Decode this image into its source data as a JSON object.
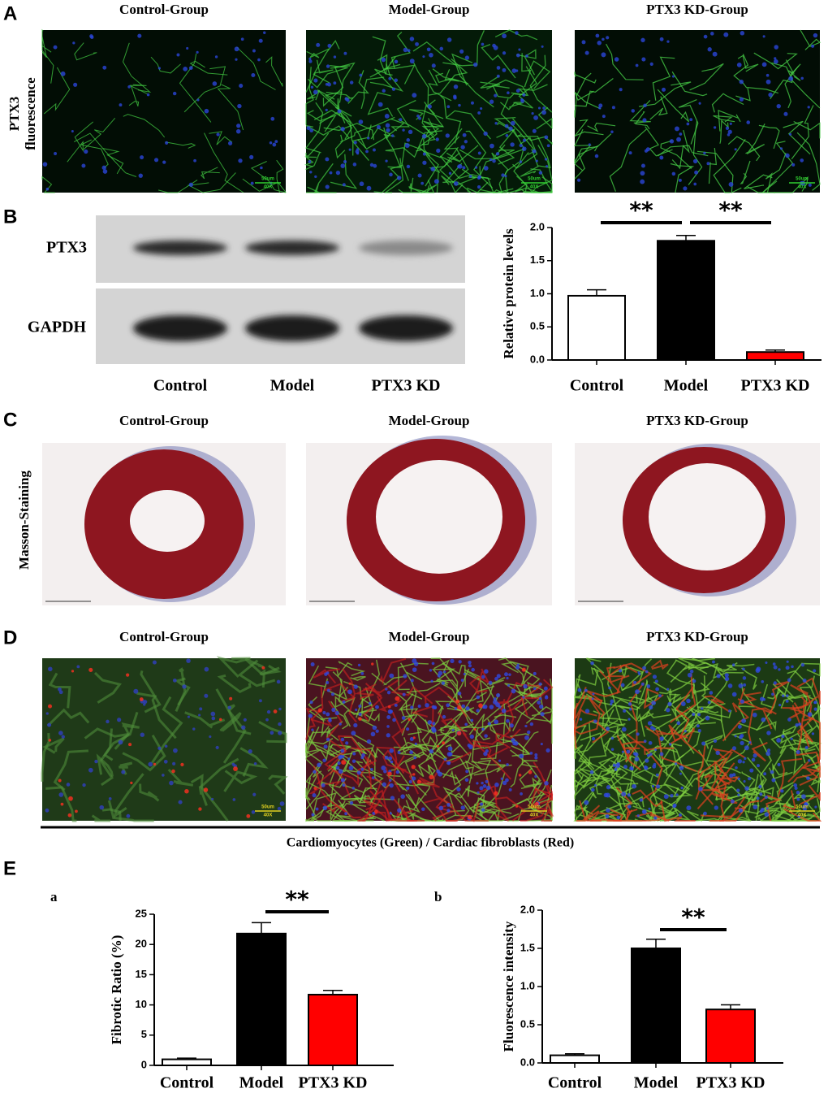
{
  "panels": {
    "A": {
      "label": "A",
      "row_label": [
        "PTX3",
        "fluorescence"
      ],
      "titles": [
        "Control-Group",
        "Model-Group",
        "PTX3 KD-Group"
      ],
      "scale_text": "50um",
      "magnification": "40X"
    },
    "B": {
      "label": "B",
      "blot_rows": [
        "PTX3",
        "GAPDH"
      ],
      "lanes": [
        "Control",
        "Model",
        "PTX3 KD"
      ]
    },
    "C": {
      "label": "C",
      "row_label": "Masson-Staining",
      "titles": [
        "Control-Group",
        "Model-Group",
        "PTX3 KD-Group"
      ]
    },
    "D": {
      "label": "D",
      "titles": [
        "Control-Group",
        "Model-Group",
        "PTX3 KD-Group"
      ],
      "scale_text": "50um",
      "magnification": "40X",
      "caption": "Cardiomyocytes (Green) / Cardiac fibroblasts (Red)"
    },
    "E": {
      "label": "E",
      "sublabels": [
        "a",
        "b"
      ]
    }
  },
  "chart_data": [
    {
      "type": "bar",
      "ylabel": "Relative protein levels",
      "categories": [
        "Control",
        "Model",
        "PTX3 KD"
      ],
      "values": [
        0.97,
        1.8,
        0.12
      ],
      "errors": [
        0.09,
        0.08,
        0.03
      ],
      "colors": [
        "#ffffff",
        "#000000",
        "#ff0000"
      ],
      "ylim": [
        0,
        2
      ],
      "yticks": [
        {
          "value": 0,
          "label": "0.0"
        },
        {
          "value": 0.5,
          "label": "0.5"
        },
        {
          "value": 1,
          "label": "1.0"
        },
        {
          "value": 1.5,
          "label": "1.5"
        },
        {
          "value": 2,
          "label": "2.0"
        }
      ],
      "annotations": [
        "**",
        "**"
      ]
    },
    {
      "type": "bar",
      "ylabel": "Fibrotic Ratio (%)",
      "categories": [
        "Control",
        "Model",
        "PTX3 KD"
      ],
      "values": [
        1.0,
        21.8,
        11.7
      ],
      "errors": [
        0.2,
        1.8,
        0.7
      ],
      "colors": [
        "#ffffff",
        "#000000",
        "#ff0000"
      ],
      "ylim": [
        0,
        25
      ],
      "yticks": [
        0,
        5,
        10,
        15,
        20,
        25
      ],
      "annotations": [
        "**"
      ]
    },
    {
      "type": "bar",
      "ylabel": "Fluorescence intensity",
      "categories": [
        "Control",
        "Model",
        "PTX3 KD"
      ],
      "values": [
        0.1,
        1.5,
        0.7
      ],
      "errors": [
        0.02,
        0.12,
        0.06
      ],
      "colors": [
        "#ffffff",
        "#000000",
        "#ff0000"
      ],
      "ylim": [
        0,
        2
      ],
      "yticks": [
        {
          "value": 0,
          "label": "0.0"
        },
        {
          "value": 0.5,
          "label": "0.5"
        },
        {
          "value": 1,
          "label": "1.0"
        },
        {
          "value": 1.5,
          "label": "1.5"
        },
        {
          "value": 2,
          "label": "2.0"
        }
      ],
      "annotations": [
        "**"
      ]
    }
  ]
}
